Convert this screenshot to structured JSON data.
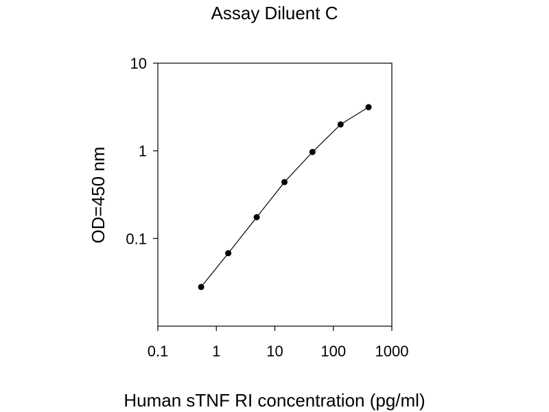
{
  "chart_data": {
    "type": "line",
    "title": "Assay Diluent C",
    "xlabel": "Human sTNF RI  concentration (pg/ml)",
    "ylabel": "OD=450 nm",
    "x_scale": "log",
    "y_scale": "log",
    "xlim": [
      0.1,
      1000
    ],
    "ylim": [
      0.01,
      10
    ],
    "x_ticks": [
      "0.1",
      "1",
      "10",
      "100",
      "1000"
    ],
    "y_ticks": [
      "0.1",
      "1",
      "10"
    ],
    "grid": false,
    "legend": "none",
    "series": [
      {
        "x": [
          0.55,
          1.6,
          4.9,
          14.6,
          44,
          133,
          400
        ],
        "y": [
          0.028,
          0.068,
          0.175,
          0.44,
          0.97,
          2.0,
          3.15
        ]
      }
    ]
  }
}
